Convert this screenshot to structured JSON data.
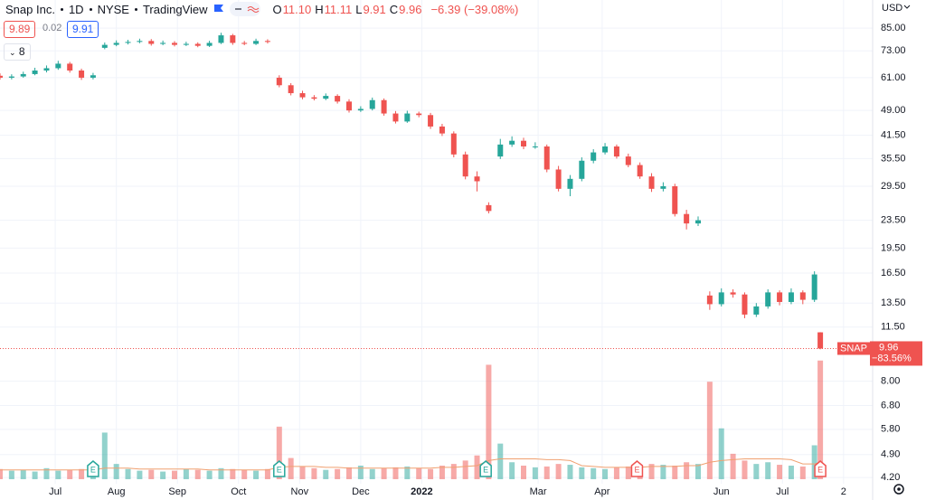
{
  "header": {
    "symbol": "Snap Inc.",
    "interval": "1D",
    "exchange": "NYSE",
    "source": "TradingView",
    "ohlc": [
      {
        "key": "O",
        "value": "11.10"
      },
      {
        "key": "H",
        "value": "11.11"
      },
      {
        "key": "L",
        "value": "9.91"
      },
      {
        "key": "C",
        "value": "9.96"
      }
    ],
    "change": "−6.39 (−39.08%)",
    "bid": "9.89",
    "spread": "0.02",
    "ask": "9.91",
    "indicators": "8"
  },
  "chart_data": {
    "type": "candlestick",
    "currency": "USD",
    "log_scale": true,
    "grid": true,
    "up_color": "#26a69a",
    "down_color": "#ef5350",
    "volume_ma_color": "#f0a070",
    "x": [
      0,
      4,
      8,
      12,
      16,
      20,
      24,
      28,
      32,
      36,
      40,
      44,
      48,
      52,
      56,
      60,
      64,
      68,
      72,
      76,
      80,
      84,
      88,
      92,
      96,
      100,
      104,
      108,
      112,
      116,
      120,
      124,
      128,
      132,
      136,
      140,
      144,
      148,
      152,
      156,
      160,
      164,
      168,
      172,
      176,
      180,
      184,
      188,
      192,
      196,
      200,
      204,
      208,
      212,
      216,
      220,
      224,
      228,
      232,
      236,
      240,
      244,
      248,
      252,
      256,
      260,
      264,
      268,
      272,
      276,
      280,
      282
    ],
    "open": [
      61.8,
      61,
      61.5,
      62.5,
      64,
      65,
      67,
      64,
      61,
      74.5,
      76,
      77,
      77.5,
      78,
      76.5,
      77,
      76,
      76.5,
      75.5,
      77,
      81,
      77,
      76.5,
      78,
      61,
      58,
      55,
      53.5,
      53,
      54,
      52,
      49,
      49.5,
      52.5,
      48,
      45.5,
      48,
      47.5,
      44,
      42,
      36.5,
      31.5,
      26,
      36,
      39,
      40,
      38.5,
      38.5,
      33,
      29,
      31,
      35,
      37,
      38.5,
      36,
      34,
      31.5,
      29,
      29.5,
      24.5,
      23,
      14.2,
      13.4,
      14.5,
      14.3,
      12.5,
      13.2,
      14.5,
      13.6,
      14.5,
      13.8,
      11.1
    ],
    "high": [
      62.8,
      62.4,
      63.5,
      65.2,
      66.2,
      68.3,
      67.8,
      64.8,
      63,
      77.2,
      78.3,
      78.6,
      79.2,
      79,
      78.2,
      77.9,
      77.6,
      77.3,
      78.1,
      82.4,
      81.8,
      78,
      79.2,
      78.9,
      62,
      58.8,
      55.9,
      54.3,
      54.9,
      54.6,
      52.8,
      50.4,
      53.4,
      53.1,
      48.8,
      48.9,
      48.6,
      48.2,
      44.8,
      42.6,
      37.2,
      32.6,
      26.5,
      40.5,
      41.2,
      40.8,
      39.6,
      39,
      33.8,
      31.8,
      35.8,
      37.8,
      39.4,
      39,
      36.7,
      34.6,
      32.2,
      30.3,
      30,
      25.2,
      24.1,
      14.6,
      14.9,
      14.8,
      14.5,
      13.5,
      14.8,
      14.7,
      14.9,
      14.7,
      16.7,
      11.11
    ],
    "low": [
      60.2,
      60.3,
      61,
      62,
      63.2,
      64.3,
      63.1,
      60.1,
      60.3,
      73.8,
      75.3,
      76.2,
      76.8,
      75.6,
      75.8,
      75.2,
      75.4,
      74.8,
      74.9,
      76.4,
      76,
      75.8,
      75.9,
      76.7,
      57.2,
      54.2,
      52.8,
      52.4,
      52.5,
      51.3,
      48.3,
      48.5,
      49,
      47.3,
      44.9,
      45.1,
      46.8,
      43.3,
      41.3,
      35.8,
      30.9,
      28.5,
      24.6,
      35.4,
      38.4,
      37.8,
      37.9,
      32.4,
      28.5,
      27.6,
      30.5,
      34.4,
      36.5,
      35.5,
      33.5,
      31,
      28.4,
      28.5,
      24.1,
      22.1,
      22.6,
      12.9,
      13.2,
      14,
      12.2,
      12.3,
      13,
      13.3,
      13.4,
      13.4,
      13.6,
      9.91
    ],
    "close": [
      61,
      61.5,
      62.5,
      64,
      65,
      67,
      64,
      61,
      62,
      76,
      77,
      77.5,
      78,
      76.5,
      77,
      76,
      76.5,
      75.5,
      77,
      81,
      77,
      76.5,
      78,
      77.5,
      58,
      55,
      53.5,
      53,
      54,
      52,
      49,
      49.5,
      52.5,
      48,
      45.5,
      48,
      47.5,
      44,
      42,
      36.5,
      31.5,
      30.5,
      25,
      39,
      40,
      38.5,
      38.5,
      33,
      29,
      31,
      35,
      37,
      38.5,
      36,
      34,
      31.5,
      29,
      29.5,
      24.5,
      23,
      23.5,
      13.4,
      14.5,
      14.3,
      12.5,
      13.2,
      14.5,
      13.6,
      14.5,
      13.8,
      16.35,
      9.96
    ],
    "volume": [
      12,
      10,
      11,
      9,
      13,
      10,
      11,
      12,
      14,
      55,
      18,
      12,
      10,
      11,
      9,
      10,
      12,
      11,
      10,
      13,
      12,
      11,
      10,
      12,
      62,
      25,
      15,
      13,
      11,
      12,
      14,
      16,
      12,
      13,
      14,
      15,
      13,
      12,
      16,
      18,
      22,
      28,
      135,
      42,
      20,
      16,
      14,
      15,
      18,
      17,
      14,
      13,
      12,
      14,
      15,
      16,
      18,
      17,
      16,
      20,
      18,
      115,
      60,
      30,
      22,
      18,
      20,
      17,
      16,
      15,
      40,
      140
    ],
    "volume_ma": [
      11,
      11,
      11,
      11,
      11,
      11,
      11,
      11,
      11,
      13,
      13,
      13,
      12,
      12,
      12,
      12,
      12,
      12,
      11,
      11,
      11,
      11,
      11,
      11,
      14,
      15,
      15,
      15,
      14,
      14,
      13,
      13,
      13,
      13,
      13,
      13,
      13,
      13,
      14,
      14,
      15,
      16,
      22,
      24,
      24,
      24,
      24,
      23,
      23,
      22,
      16,
      15,
      14,
      14,
      14,
      14,
      15,
      15,
      15,
      16,
      16,
      20,
      22,
      23,
      24,
      24,
      24,
      24,
      23,
      18,
      18,
      20
    ],
    "volume_lim": [
      0,
      160
    ],
    "xlim": [
      0,
      300
    ],
    "xticks": [
      {
        "value": 19,
        "label": "Jul"
      },
      {
        "value": 40,
        "label": "Aug"
      },
      {
        "value": 61,
        "label": "Sep"
      },
      {
        "value": 82,
        "label": "Oct"
      },
      {
        "value": 103,
        "label": "Nov"
      },
      {
        "value": 124,
        "label": "Dec"
      },
      {
        "value": 145,
        "label": "2022",
        "bold": true
      },
      {
        "value": 185,
        "label": "Mar"
      },
      {
        "value": 207,
        "label": "Apr"
      },
      {
        "value": 248,
        "label": "Jun"
      },
      {
        "value": 269,
        "label": "Jul"
      },
      {
        "value": 290,
        "label": "2"
      }
    ],
    "ylim": [
      3.91,
      102.6
    ],
    "yticks": [
      {
        "value": 85,
        "label": "85.00"
      },
      {
        "value": 73,
        "label": "73.00"
      },
      {
        "value": 61,
        "label": "61.00"
      },
      {
        "value": 49,
        "label": "49.00"
      },
      {
        "value": 41.5,
        "label": "41.50"
      },
      {
        "value": 35.5,
        "label": "35.50"
      },
      {
        "value": 29.5,
        "label": "29.50"
      },
      {
        "value": 23.5,
        "label": "23.50"
      },
      {
        "value": 19.5,
        "label": "19.50"
      },
      {
        "value": 16.5,
        "label": "16.50"
      },
      {
        "value": 13.5,
        "label": "13.50"
      },
      {
        "value": 11.5,
        "label": "11.50"
      },
      {
        "value": 8,
        "label": "8.00"
      },
      {
        "value": 6.8,
        "label": "6.80"
      },
      {
        "value": 5.8,
        "label": "5.80"
      },
      {
        "value": 4.9,
        "label": "4.90"
      },
      {
        "value": 4.2,
        "label": "4.20"
      }
    ],
    "last_price": {
      "symbol": "SNAP",
      "price": "9.96",
      "change": "−83.56%"
    },
    "events": {
      "x": [
        32,
        96,
        167,
        219,
        282
      ],
      "labels": [
        "E",
        "E",
        "E",
        "E",
        "E"
      ],
      "colors": [
        "#26a69a",
        "#26a69a",
        "#26a69a",
        "#ef5350",
        "#ef5350"
      ]
    }
  }
}
